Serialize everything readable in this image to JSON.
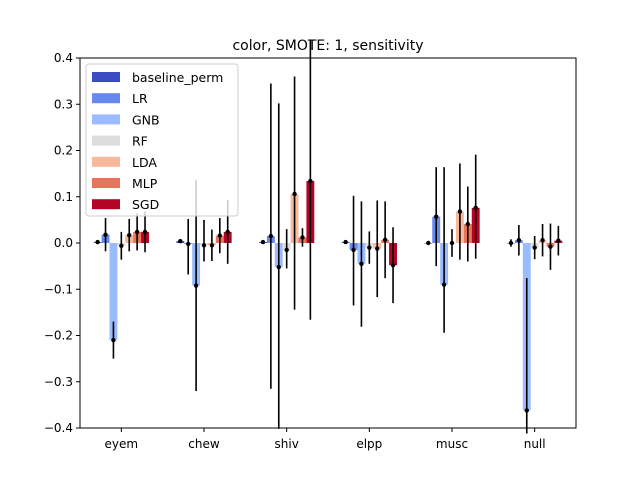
{
  "chart_data": {
    "type": "bar",
    "title": "color, SMOTE: 1, sensitivity",
    "xlabel": "",
    "ylabel": "",
    "ylim": [
      -0.4,
      0.4
    ],
    "yticks": [
      -0.4,
      -0.3,
      -0.2,
      -0.1,
      0.0,
      0.1,
      0.2,
      0.3,
      0.4
    ],
    "ytick_labels": [
      "−0.4",
      "−0.3",
      "−0.2",
      "−0.1",
      "0.0",
      "0.1",
      "0.2",
      "0.3",
      "0.4"
    ],
    "categories": [
      "eyem",
      "chew",
      "shiv",
      "elpp",
      "musc",
      "null"
    ],
    "grid": false,
    "legend_position": "upper-left",
    "series": [
      {
        "name": "baseline_perm",
        "color": "#3b4cc0",
        "values": [
          0.002,
          0.004,
          0.002,
          0.002,
          0.0,
          0.0
        ],
        "err_low": [
          0.002,
          0.004,
          0.002,
          0.002,
          0.0,
          0.008
        ],
        "err_high": [
          0.002,
          0.004,
          0.004,
          0.002,
          0.0,
          0.008
        ]
      },
      {
        "name": "LR",
        "color": "#6788ee",
        "values": [
          0.018,
          -0.002,
          0.015,
          -0.015,
          0.057,
          0.006
        ],
        "err_low": [
          0.036,
          0.066,
          0.33,
          0.12,
          0.107,
          0.033
        ],
        "err_high": [
          0.036,
          0.054,
          0.33,
          0.117,
          0.107,
          0.033
        ]
      },
      {
        "name": "GNB",
        "color": "#9abbff",
        "values": [
          -0.21,
          -0.092,
          -0.052,
          -0.045,
          -0.09,
          -0.362
        ],
        "err_low": [
          0.04,
          0.228,
          0.35,
          0.136,
          0.104,
          0.05
        ],
        "err_high": [
          0.04,
          0.228,
          0.354,
          0.135,
          0.254,
          0.286
        ]
      },
      {
        "name": "RF",
        "color": "#dddddd",
        "values": [
          -0.006,
          -0.005,
          -0.015,
          -0.01,
          0.0,
          -0.01
        ],
        "err_low": [
          0.03,
          0.035,
          0.04,
          0.035,
          0.03,
          0.025
        ],
        "err_high": [
          0.03,
          0.055,
          0.045,
          0.035,
          0.03,
          0.025
        ]
      },
      {
        "name": "LDA",
        "color": "#f7b89c",
        "values": [
          0.017,
          -0.005,
          0.106,
          -0.012,
          0.068,
          0.006
        ],
        "err_low": [
          0.035,
          0.034,
          0.25,
          0.105,
          0.104,
          0.035
        ],
        "err_high": [
          0.035,
          0.034,
          0.254,
          0.104,
          0.104,
          0.035
        ]
      },
      {
        "name": "MLP",
        "color": "#e7745b",
        "values": [
          0.024,
          0.016,
          0.012,
          0.007,
          0.041,
          -0.008
        ],
        "err_low": [
          0.04,
          0.038,
          0.02,
          0.083,
          0.081,
          0.05
        ],
        "err_high": [
          0.04,
          0.038,
          0.02,
          0.083,
          0.081,
          0.05
        ]
      },
      {
        "name": "SGD",
        "color": "#b40426",
        "values": [
          0.024,
          0.024,
          0.134,
          -0.048,
          0.076,
          0.005
        ],
        "err_low": [
          0.044,
          0.069,
          0.3,
          0.082,
          0.11,
          0.032
        ],
        "err_high": [
          0.044,
          0.069,
          0.306,
          0.082,
          0.115,
          0.032
        ]
      }
    ]
  }
}
